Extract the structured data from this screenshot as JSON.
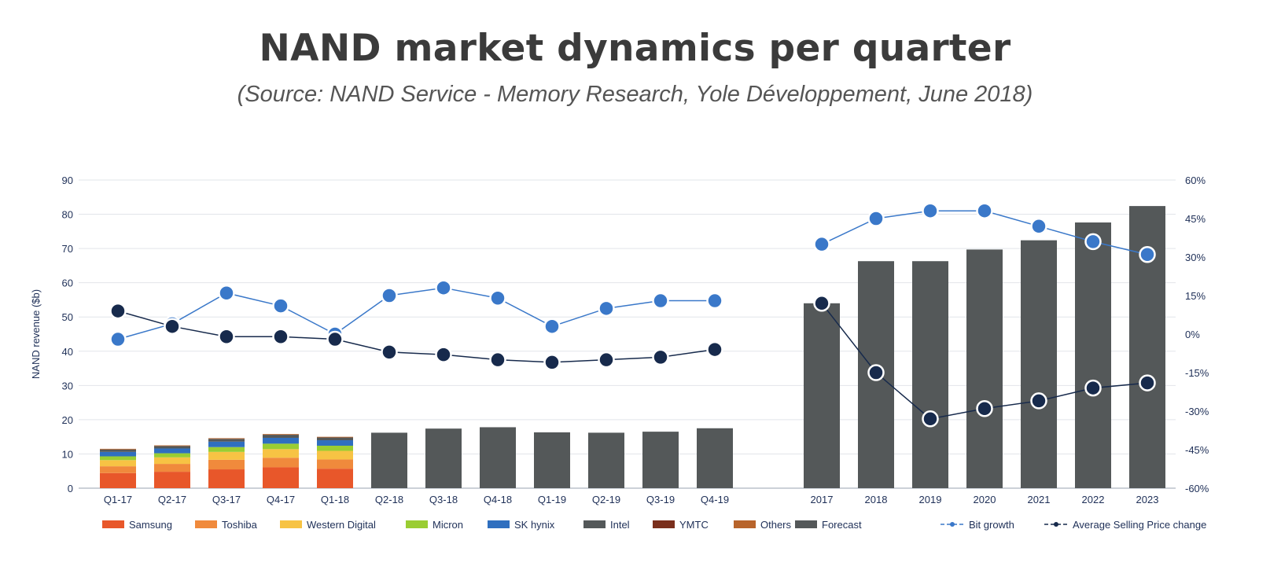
{
  "title": "NAND market dynamics per quarter",
  "subtitle": "(Source: NAND Service - Memory Research, Yole Développement, June 2018)",
  "chart_data": {
    "type": "bar",
    "ylabel": "NAND revenue ($b)",
    "ylim": [
      0,
      90
    ],
    "yticks": [
      "0",
      "10",
      "20",
      "30",
      "40",
      "50",
      "60",
      "70",
      "80",
      "90"
    ],
    "y2lim": [
      -60,
      60
    ],
    "y2ticks": [
      "-60%",
      "-45%",
      "-30%",
      "-15%",
      "0%",
      "15%",
      "30%",
      "45%",
      "60%"
    ],
    "grid": true,
    "categories": [
      "Q1-17",
      "Q2-17",
      "Q3-17",
      "Q4-17",
      "Q1-18",
      "Q2-18",
      "Q3-18",
      "Q4-18",
      "Q1-19",
      "Q2-19",
      "Q3-19",
      "Q4-19",
      "2017",
      "2018",
      "2019",
      "2020",
      "2021",
      "2022",
      "2023"
    ],
    "stack_series": [
      {
        "name": "Samsung",
        "color": "#e8572a",
        "values": [
          4.4,
          4.8,
          5.5,
          6.1,
          5.7
        ]
      },
      {
        "name": "Toshiba",
        "color": "#f08a3c",
        "values": [
          2.0,
          2.3,
          2.8,
          2.8,
          2.7
        ]
      },
      {
        "name": "Western Digital",
        "color": "#f7c344",
        "values": [
          1.8,
          1.9,
          2.3,
          2.5,
          2.5
        ]
      },
      {
        "name": "Micron",
        "color": "#9acd32",
        "values": [
          1.1,
          1.2,
          1.4,
          1.6,
          1.5
        ]
      },
      {
        "name": "SK hynix",
        "color": "#2f6fbf",
        "values": [
          1.3,
          1.4,
          1.6,
          1.7,
          1.6
        ]
      },
      {
        "name": "Intel",
        "color": "#545859",
        "values": [
          0.7,
          0.7,
          0.8,
          0.9,
          0.8
        ]
      },
      {
        "name": "YMTC",
        "color": "#7a2f1c",
        "values": [
          0,
          0,
          0,
          0,
          0
        ]
      },
      {
        "name": "Others",
        "color": "#b8642b",
        "values": [
          0.2,
          0.2,
          0.2,
          0.2,
          0.2
        ]
      }
    ],
    "forecast": {
      "name": "Forecast",
      "color": "#545859",
      "values": [
        null,
        null,
        null,
        null,
        null,
        16.2,
        17.4,
        17.8,
        16.3,
        16.2,
        16.5,
        17.5,
        54.0,
        66.3,
        66.3,
        69.7,
        72.4,
        77.6,
        82.4
      ]
    },
    "lines": [
      {
        "name": "Bit growth",
        "color": "#3a78c9",
        "axis": "right",
        "values": [
          -2,
          4,
          16,
          11,
          0,
          15,
          18,
          14,
          3,
          10,
          13,
          13,
          35,
          45,
          48,
          48,
          42,
          36,
          31
        ]
      },
      {
        "name": "Average Selling Price change",
        "color": "#172a4c",
        "axis": "right",
        "values": [
          9,
          3,
          -1,
          -1,
          -2,
          -7,
          -8,
          -10,
          -11,
          -10,
          -9,
          -6,
          12,
          -15,
          -33,
          -29,
          -26,
          -21,
          -19
        ]
      }
    ],
    "legend": "bottom"
  }
}
